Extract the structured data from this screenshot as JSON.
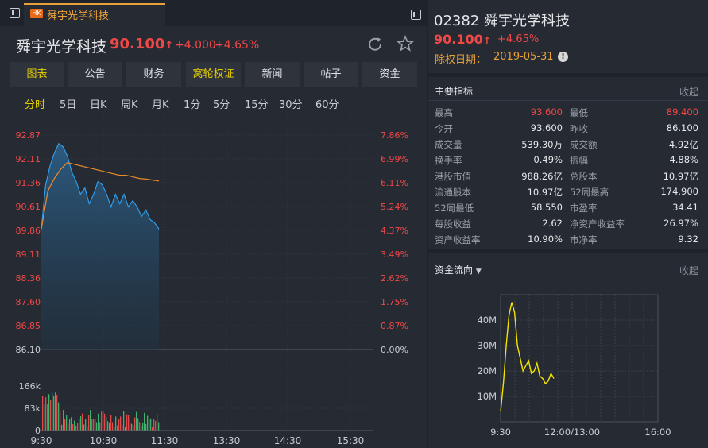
{
  "left_panel": {
    "tab_badge": "HK",
    "tab_title": "舜宇光学科技",
    "stock_name": "舜宇光学科技",
    "price": "90.100",
    "price_arrow": "↑",
    "change": "+4.000",
    "change_pct": "+4.65%",
    "nav_tabs": [
      "图表",
      "公告",
      "财务",
      "窝轮权证",
      "新闻",
      "帖子",
      "资金"
    ],
    "periods": [
      "分时",
      "5日",
      "日K",
      "周K",
      "月K",
      "1分",
      "5分",
      "15分",
      "30分",
      "60分"
    ],
    "active_period": "分时"
  },
  "price_chart": {
    "y_left_labels": [
      "92.87",
      "92.11",
      "91.36",
      "90.61",
      "89.86",
      "89.11",
      "88.36",
      "87.60",
      "86.85",
      "86.10"
    ],
    "y_right_labels": [
      "7.86%",
      "6.99%",
      "6.11%",
      "5.24%",
      "4.37%",
      "3.49%",
      "2.62%",
      "1.75%",
      "0.87%",
      "0.00%"
    ],
    "volume_labels": [
      "166k",
      "83k",
      "0"
    ],
    "x_labels": [
      "9:30",
      "10:30",
      "11:30",
      "13:30",
      "14:30",
      "15:30"
    ]
  },
  "chart_data": [
    {
      "type": "line",
      "title": "",
      "x_labels": [
        "9:30",
        "10:30",
        "11:30",
        "13:30",
        "14:30",
        "15:30"
      ],
      "ylim": [
        86.1,
        92.87
      ],
      "series": [
        {
          "values": [
            89.9,
            91.3,
            91.9,
            92.3,
            92.6,
            92.5,
            92.2,
            91.7,
            91.4,
            91.0,
            91.2,
            90.7,
            91.0,
            91.4,
            91.3,
            91.0,
            90.6,
            91.0,
            90.7,
            91.0,
            90.6,
            90.8,
            90.6,
            90.3,
            90.5,
            90.2,
            90.1,
            89.9
          ]
        },
        {
          "values": [
            89.9,
            91.1,
            91.5,
            91.8,
            92.0,
            91.95,
            91.9,
            91.85,
            91.8,
            91.75,
            91.7,
            91.65,
            91.6,
            91.6,
            91.55,
            91.5,
            91.48,
            91.45,
            91.42
          ]
        }
      ]
    },
    {
      "type": "line",
      "title": "资金流向",
      "x_labels": [
        "9:30",
        "12:00/13:00",
        "16:00"
      ],
      "y_ticks": [
        "40M",
        "30M",
        "20M",
        "10M"
      ],
      "series": [
        {
          "values": [
            4,
            15,
            30,
            42,
            47,
            43,
            30,
            25,
            20,
            22,
            24,
            19,
            20,
            23,
            18,
            17,
            15,
            16,
            19,
            17
          ]
        }
      ]
    }
  ],
  "right_panel": {
    "code": "02382",
    "name": "舜宇光学科技",
    "price": "90.100",
    "price_arrow": "↑",
    "change_pct": "+4.65%",
    "exdiv_label": "除权日期：",
    "exdiv_date": "2019-05-31",
    "info_icon": "!",
    "metrics_title": "主要指标",
    "collapse": "收起",
    "metrics": [
      {
        "l": "最高",
        "v": "93.600",
        "l2": "最低",
        "v2": "89.400",
        "c": "red",
        "c2": "red"
      },
      {
        "l": "今开",
        "v": "93.600",
        "l2": "昨收",
        "v2": "86.100",
        "c": "white",
        "c2": "white"
      },
      {
        "l": "成交量",
        "v": "539.30万",
        "l2": "成交额",
        "v2": "4.92亿",
        "c": "white",
        "c2": "white"
      },
      {
        "l": "换手率",
        "v": "0.49%",
        "l2": "振幅",
        "v2": "4.88%",
        "c": "white",
        "c2": "white"
      },
      {
        "l": "港股市值",
        "v": "988.26亿",
        "l2": "总股本",
        "v2": "10.97亿",
        "c": "white",
        "c2": "white"
      },
      {
        "l": "流通股本",
        "v": "10.97亿",
        "l2": "52周最高",
        "v2": "174.900",
        "c": "white",
        "c2": "white"
      },
      {
        "l": "52周最低",
        "v": "58.550",
        "l2": "市盈率",
        "v2": "34.41",
        "c": "white",
        "c2": "white"
      },
      {
        "l": "每股收益",
        "v": "2.62",
        "l2": "净资产收益率",
        "v2": "26.97%",
        "c": "white",
        "c2": "white"
      },
      {
        "l": "资产收益率",
        "v": "10.90%",
        "l2": "市净率",
        "v2": "9.32",
        "c": "white",
        "c2": "white"
      }
    ],
    "flow_title": "资金流向",
    "flow_collapse": "收起"
  },
  "colors": {
    "up": "#f04747",
    "accent": "#e9a23b",
    "price_line": "#2e9be8",
    "avg_line": "#e98a2c",
    "flow_line": "#f5e400"
  }
}
